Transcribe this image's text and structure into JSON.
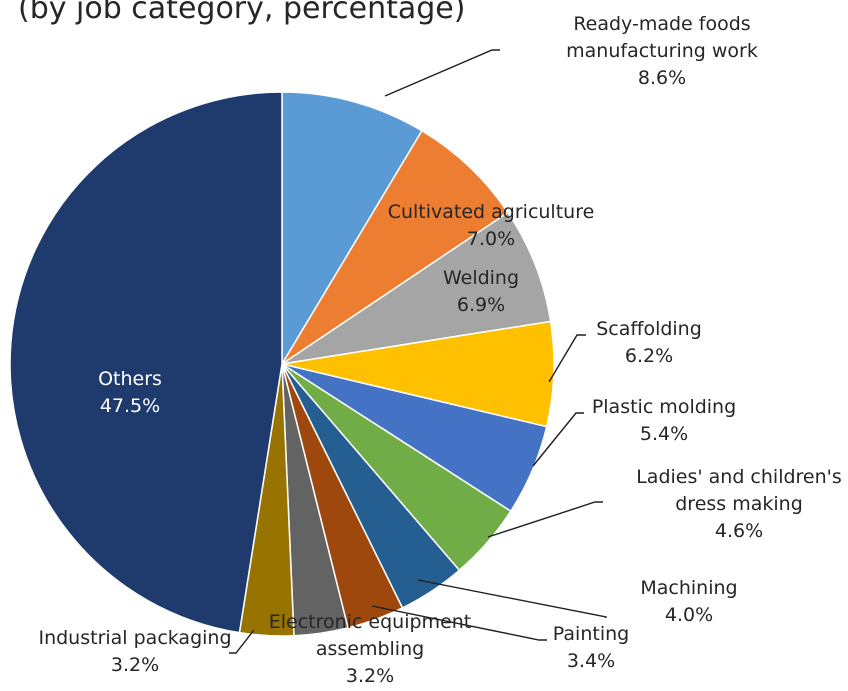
{
  "chart_data": {
    "type": "pie",
    "title": "(by job category, percentage)",
    "categories": [
      "Ready-made foods manufacturing work",
      "Cultivated agriculture",
      "Welding",
      "Scaffolding",
      "Plastic molding",
      "Ladies' and children's dress making",
      "Machining",
      "Painting",
      "Electronic equipment assembling",
      "Industrial packaging",
      "Others"
    ],
    "values": [
      8.6,
      7.0,
      6.9,
      6.2,
      5.4,
      4.6,
      4.0,
      3.4,
      3.2,
      3.2,
      47.5
    ],
    "value_labels": [
      "8.6%",
      "7.0%",
      "6.9%",
      "6.2%",
      "5.4%",
      "4.6%",
      "4.0%",
      "3.4%",
      "3.2%",
      "3.2%",
      "47.5%"
    ],
    "label_lines": [
      [
        "Ready-made foods",
        "manufacturing work"
      ],
      [
        "Cultivated agriculture"
      ],
      [
        "Welding"
      ],
      [
        "Scaffolding"
      ],
      [
        "Plastic molding"
      ],
      [
        "Ladies' and children's",
        "dress making"
      ],
      [
        "Machining"
      ],
      [
        "Painting"
      ],
      [
        "Electronic equipment",
        "assembling"
      ],
      [
        "Industrial packaging"
      ],
      [
        "Others"
      ]
    ],
    "colors": [
      "#5b9bd5",
      "#ed7d31",
      "#a5a5a5",
      "#ffc000",
      "#4472c4",
      "#70ad47",
      "#255e91",
      "#9e480e",
      "#636363",
      "#997300",
      "#1f3b6e"
    ],
    "start_angle_deg": 0,
    "direction": "clockwise",
    "legend": "none"
  }
}
